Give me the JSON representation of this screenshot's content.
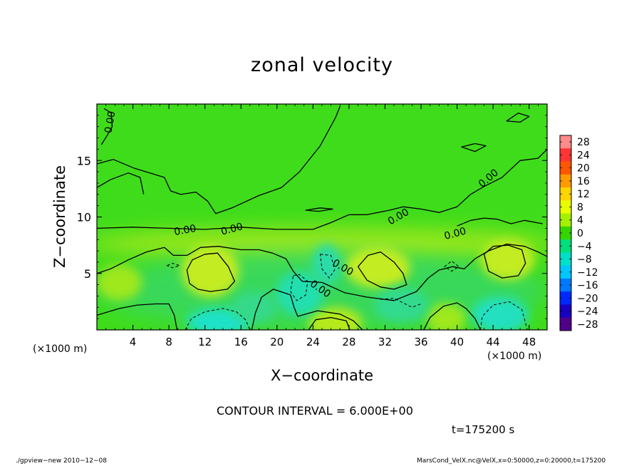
{
  "header": {
    "title": "zonal velocity",
    "contour_interval": "CONTOUR INTERVAL = 6.000E+00",
    "time_stamp": "t=175200 s"
  },
  "axes": {
    "xlabel": "X−coordinate",
    "ylabel": "Z−coordinate",
    "x_unit_left": "(×1000 m)",
    "x_unit_right": "(×1000 m)"
  },
  "footer": {
    "left": "./gpview−new  2010−12−08",
    "right": "MarsCond_VelX.nc@VelX,x=0:50000,z=0:20000,t=175200"
  },
  "chart_data": {
    "type": "heatmap",
    "title": "zonal velocity",
    "xlabel": "X−coordinate",
    "ylabel": "Z−coordinate",
    "x_unit": "(×1000 m)",
    "xlim": [
      0,
      50
    ],
    "ylim": [
      0,
      20
    ],
    "x_ticks": [
      4,
      8,
      12,
      16,
      20,
      24,
      28,
      32,
      36,
      40,
      44,
      48
    ],
    "y_ticks": [
      5,
      10,
      15
    ],
    "contour_interval": 6.0,
    "contour_labels": [
      {
        "x": 1.5,
        "z": 18.4,
        "text": "0.00"
      },
      {
        "x": 9.8,
        "z": 8.8,
        "text": "0.00"
      },
      {
        "x": 15.0,
        "z": 8.9,
        "text": "0.00"
      },
      {
        "x": 27.3,
        "z": 5.5,
        "text": "0.00"
      },
      {
        "x": 24.8,
        "z": 3.6,
        "text": "0.00"
      },
      {
        "x": 33.5,
        "z": 10.0,
        "text": "0.00"
      },
      {
        "x": 39.8,
        "z": 8.5,
        "text": "0.00"
      },
      {
        "x": 43.5,
        "z": 13.4,
        "text": "0.00"
      }
    ],
    "colorbar": {
      "levels": [
        28,
        24,
        20,
        16,
        12,
        8,
        4,
        0,
        -4,
        -8,
        -12,
        -16,
        -20,
        -24,
        -28
      ],
      "colors": [
        "#ff8a8a",
        "#ff3434",
        "#ff5500",
        "#ff9a00",
        "#ffd400",
        "#e8ff00",
        "#a5f000",
        "#35d600",
        "#00e07a",
        "#00e0c8",
        "#00c8ff",
        "#0078ff",
        "#0028ff",
        "#1a00c0",
        "#50008a"
      ]
    },
    "features": [
      {
        "kind": "positive-max",
        "x": 12.6,
        "z": 5.2,
        "value_approx": 8
      },
      {
        "kind": "positive-max",
        "x": 31.2,
        "z": 5.5,
        "value_approx": 8
      },
      {
        "kind": "positive-max",
        "x": 45.6,
        "z": 6.2,
        "value_approx": 8
      },
      {
        "kind": "positive-max",
        "x": 26.5,
        "z": 0.6,
        "value_approx": 8
      },
      {
        "kind": "negative-min",
        "x": 13.5,
        "z": 0.5,
        "value_approx": -8
      },
      {
        "kind": "negative-min",
        "x": 22.5,
        "z": 3.2,
        "value_approx": -6
      },
      {
        "kind": "negative-min",
        "x": 44.8,
        "z": 1.2,
        "value_approx": -6
      },
      {
        "kind": "negative-min",
        "x": 25.5,
        "z": 5.6,
        "value_approx": -4
      }
    ]
  }
}
